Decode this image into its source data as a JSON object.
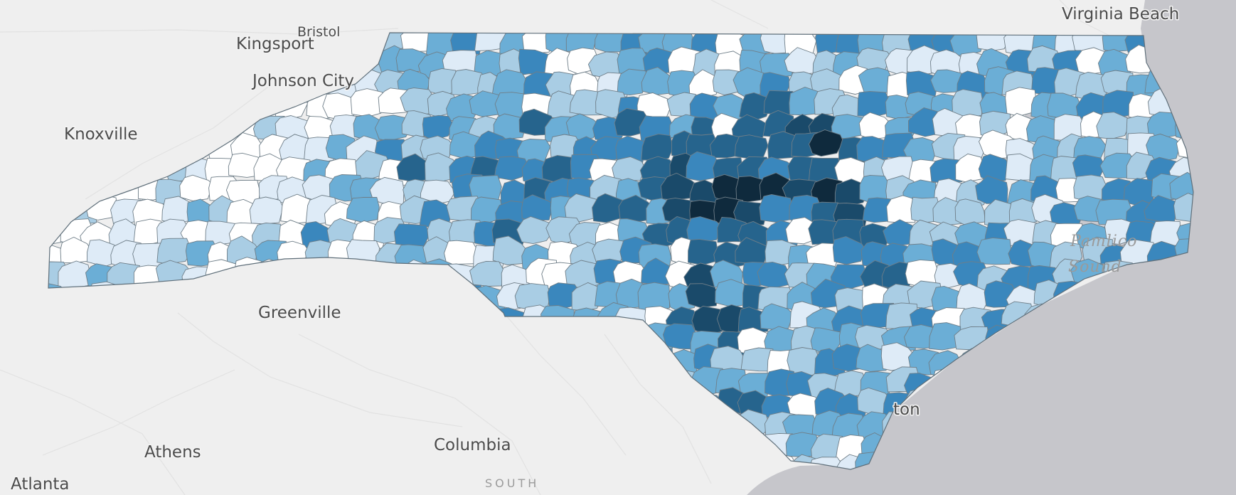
{
  "map": {
    "basemap_colors": {
      "land": "#efefef",
      "ocean": "#c6c6cb",
      "state_outline": "#5f6f7a"
    },
    "choropleth_palette": [
      "#ffffff",
      "#deebf7",
      "#a9cde4",
      "#6baed6",
      "#3a87bd",
      "#26648d",
      "#1a4a6a",
      "#0f2a3d"
    ],
    "labels": {
      "virginia_beach": "Virginia Beach",
      "bristol": "Bristol",
      "kingsport": "Kingsport",
      "johnson_city": "Johnson City",
      "knoxville": "Knoxville",
      "greenville": "Greenville",
      "athens": "Athens",
      "atlanta": "Atlanta",
      "columbia": "Columbia",
      "south": "SOUTH",
      "wilmington_partial": "ton",
      "pamlico": "Pamlico",
      "sound": "Sound"
    }
  }
}
